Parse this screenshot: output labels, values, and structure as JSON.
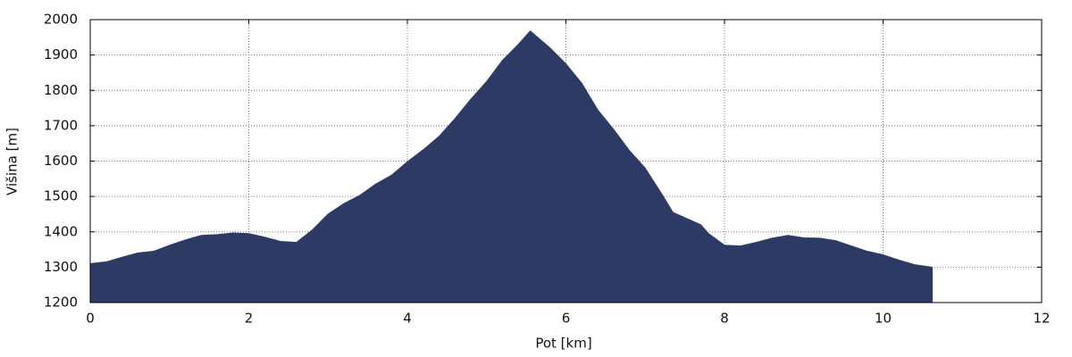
{
  "chart_data": {
    "type": "area",
    "xlabel": "Pot [km]",
    "ylabel": "Višina [m]",
    "color": "#2d3a64",
    "grid": true,
    "x": [
      0,
      0.2,
      0.4,
      0.6,
      0.8,
      1.0,
      1.2,
      1.4,
      1.6,
      1.8,
      2.0,
      2.2,
      2.4,
      2.6,
      2.8,
      3.0,
      3.2,
      3.4,
      3.6,
      3.8,
      4.0,
      4.2,
      4.4,
      4.6,
      4.8,
      5.0,
      5.2,
      5.4,
      5.55,
      5.8,
      6.0,
      6.2,
      6.4,
      6.6,
      6.8,
      7.0,
      7.2,
      7.35,
      7.5,
      7.7,
      7.8,
      8.0,
      8.2,
      8.4,
      8.6,
      8.8,
      9.0,
      9.2,
      9.4,
      9.6,
      9.8,
      10.0,
      10.2,
      10.4,
      10.62
    ],
    "values": [
      1310,
      1315,
      1328,
      1340,
      1345,
      1362,
      1377,
      1390,
      1392,
      1397,
      1395,
      1385,
      1373,
      1370,
      1405,
      1450,
      1480,
      1503,
      1535,
      1560,
      1598,
      1632,
      1670,
      1720,
      1775,
      1825,
      1885,
      1930,
      1968,
      1920,
      1875,
      1820,
      1745,
      1690,
      1630,
      1580,
      1510,
      1455,
      1440,
      1420,
      1395,
      1362,
      1360,
      1370,
      1382,
      1390,
      1383,
      1382,
      1375,
      1360,
      1345,
      1335,
      1320,
      1307,
      1300
    ],
    "xlim": [
      0,
      12
    ],
    "xticks": [
      0,
      2,
      4,
      6,
      8,
      10,
      12
    ],
    "ylim": [
      1200,
      2000
    ],
    "yticks": [
      1200,
      1300,
      1400,
      1500,
      1600,
      1700,
      1800,
      1900,
      2000
    ]
  }
}
